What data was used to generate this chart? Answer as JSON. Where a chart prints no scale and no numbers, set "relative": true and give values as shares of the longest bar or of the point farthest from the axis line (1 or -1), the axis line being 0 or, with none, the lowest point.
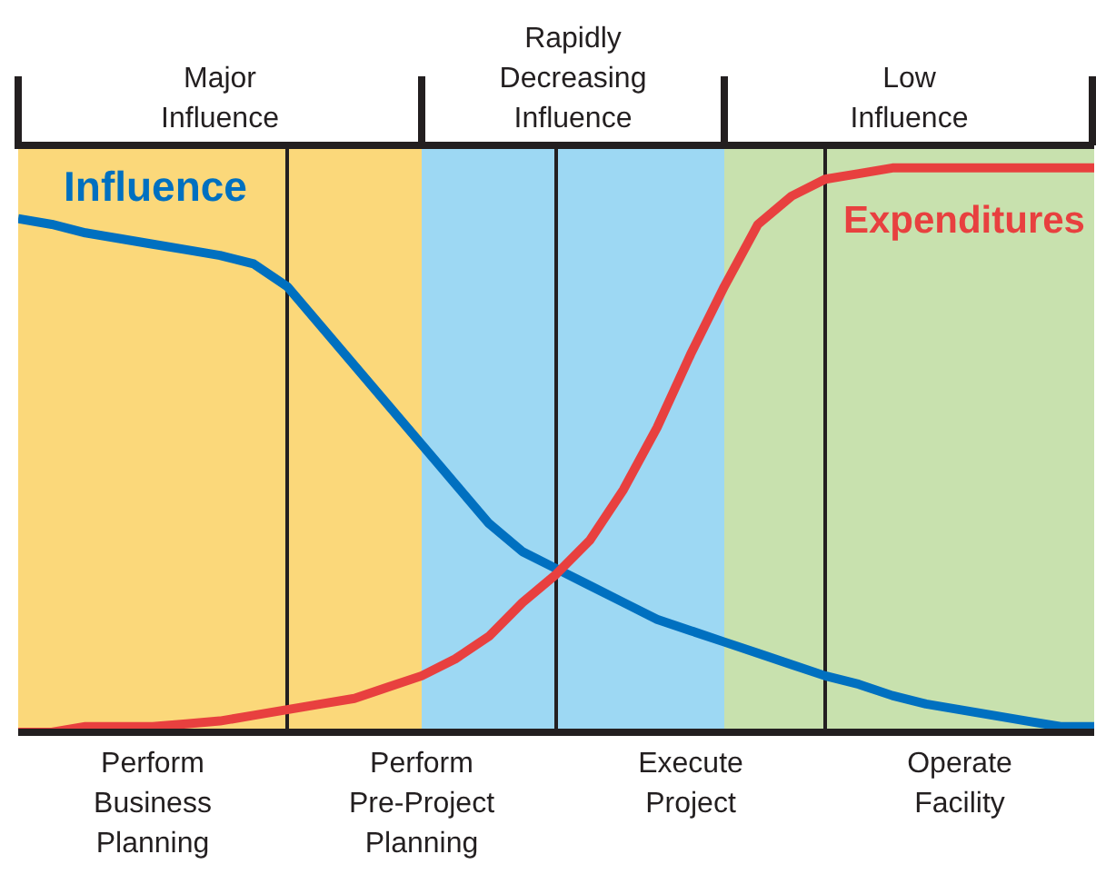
{
  "chart_data": {
    "type": "line",
    "relative": true,
    "categories": [
      null,
      null,
      null,
      null,
      "Perform Business Planning",
      null,
      null,
      null,
      null,
      null,
      null,
      null,
      "Perform Pre-Project Planning",
      null,
      null,
      null,
      null,
      null,
      null,
      null,
      "Execute Project",
      null,
      null,
      null,
      null,
      null,
      null,
      null,
      "Operate Facility",
      null,
      null,
      null,
      null
    ],
    "grid": "x",
    "annotations": [
      "Major Influence",
      "Rapidly Decreasing Influence",
      "Low Influence"
    ],
    "series": [
      {
        "name": "Influence",
        "color": "#0070c0",
        "values": [
          0.91,
          0.9,
          0.885,
          0.875,
          0.865,
          0.855,
          0.845,
          0.83,
          0.79,
          0.72,
          0.65,
          0.58,
          0.51,
          0.44,
          0.37,
          0.32,
          0.29,
          0.26,
          0.23,
          0.2,
          0.18,
          0.16,
          0.14,
          0.12,
          0.1,
          0.085,
          0.065,
          0.05,
          0.04,
          0.03,
          0.02,
          0.01,
          0.01
        ]
      },
      {
        "name": "Expenditures",
        "color": "#e8403f",
        "values": [
          0,
          0,
          0.01,
          0.01,
          0.01,
          0.015,
          0.02,
          0.03,
          0.04,
          0.05,
          0.06,
          0.08,
          0.1,
          0.13,
          0.17,
          0.23,
          0.28,
          0.34,
          0.43,
          0.54,
          0.67,
          0.79,
          0.9,
          0.95,
          0.98,
          0.99,
          1,
          1,
          1,
          1,
          1,
          1,
          1
        ]
      }
    ]
  }
}
